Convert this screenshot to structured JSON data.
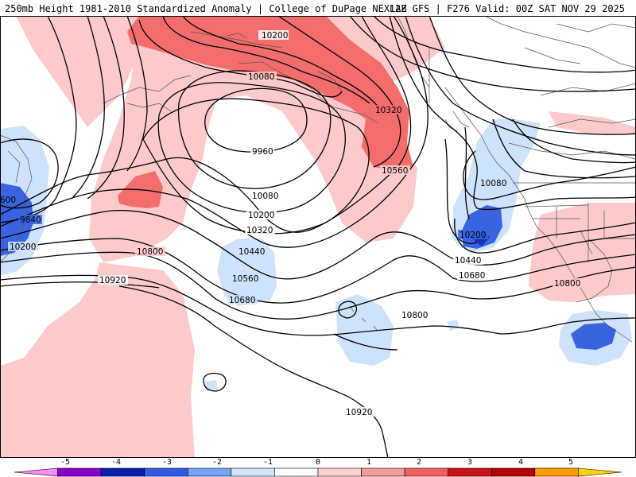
{
  "header": {
    "title_left": "250mb Height 1981-2010 Standardized Anomaly | College of DuPage NEXLAB",
    "title_right": "12Z GFS | F276 Valid: 00Z SAT NOV 29 2025"
  },
  "map": {
    "contour_labels": [
      "10200",
      "10080",
      "9960",
      "10320",
      "10560",
      "10080",
      "10200",
      "10320",
      "10440",
      "10560",
      "10680",
      "10800",
      "10920",
      "10080",
      "10200",
      "10440",
      "10680",
      "10800",
      "10800",
      "10920",
      "9840",
      "10200",
      "600"
    ]
  },
  "colorbar": {
    "labels": [
      "-5",
      "-4",
      "-3",
      "-2",
      "-1",
      "0",
      "1",
      "2",
      "3",
      "4",
      "5"
    ],
    "colors": [
      "#f58cf0",
      "#8a00c8",
      "#0a1fa8",
      "#2f5ae6",
      "#7aa2f5",
      "#cfe3fb",
      "#ffffff",
      "#ffd0d0",
      "#f59a9a",
      "#f06060",
      "#c81414",
      "#b40000",
      "#ff9a00",
      "#ffd400"
    ]
  }
}
